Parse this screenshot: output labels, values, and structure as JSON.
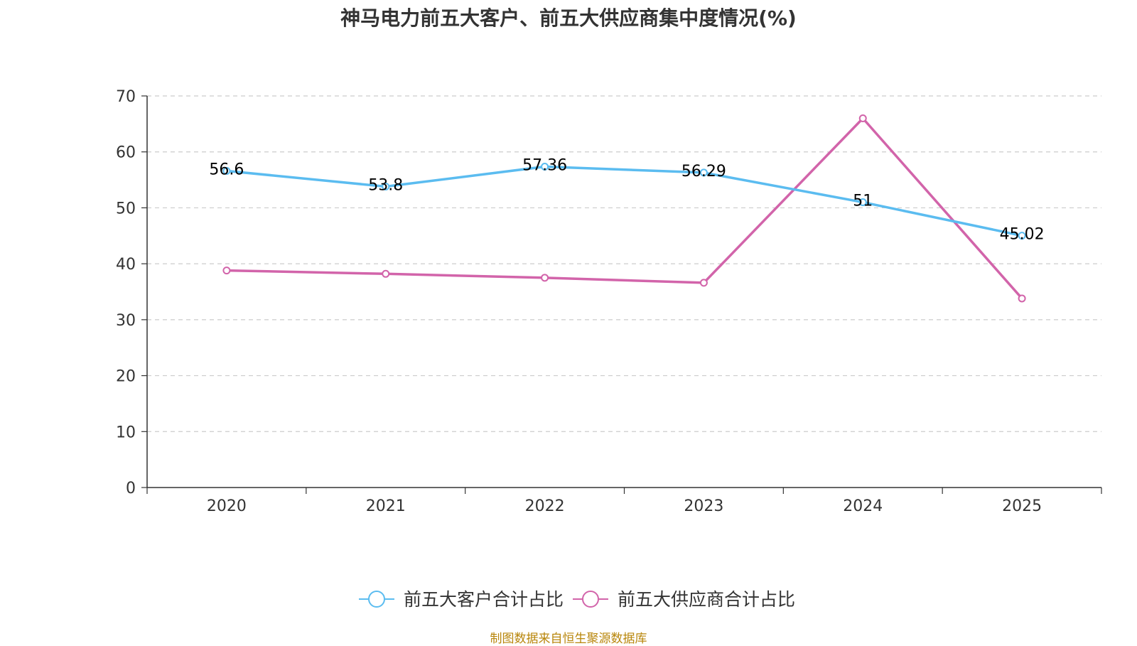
{
  "chart_data": {
    "type": "line",
    "title": "神马电力前五大客户、前五大供应商集中度情况(%)",
    "categories": [
      "2020",
      "2021",
      "2022",
      "2023",
      "2024",
      "2025"
    ],
    "ylim": [
      0,
      70
    ],
    "yticks": [
      0,
      10,
      20,
      30,
      40,
      50,
      60,
      70
    ],
    "grid": true,
    "legend_position": "bottom",
    "series": [
      {
        "name": "前五大客户合计占比",
        "color": "#5bbcf0",
        "values": [
          56.6,
          53.8,
          57.36,
          56.29,
          51,
          45.02
        ],
        "labels": [
          "56.6",
          "53.8",
          "57.36",
          "56.29",
          "51",
          "45.02"
        ]
      },
      {
        "name": "前五大供应商合计占比",
        "color": "#d264aa",
        "values": [
          38.8,
          38.2,
          37.5,
          36.6,
          66,
          33.8
        ]
      }
    ]
  },
  "source": "制图数据来自恒生聚源数据库"
}
